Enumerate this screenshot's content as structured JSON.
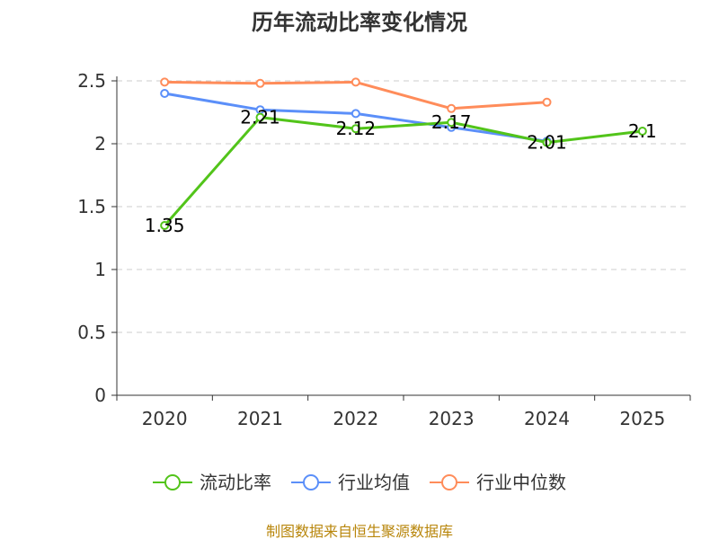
{
  "chart_data": {
    "type": "line",
    "title": "历年流动比率变化情况",
    "categories": [
      "2020",
      "2021",
      "2022",
      "2023",
      "2024",
      "2025"
    ],
    "ylim": [
      0,
      2.5
    ],
    "yticks": [
      0,
      0.5,
      1,
      1.5,
      2,
      2.5
    ],
    "ytick_labels": [
      "0",
      "0.5",
      "1",
      "1.5",
      "2",
      "2.5"
    ],
    "grid": true,
    "legend_position": "bottom",
    "series": [
      {
        "name": "流动比率",
        "color": "#52c41a",
        "values": [
          1.35,
          2.21,
          2.12,
          2.17,
          2.01,
          2.1
        ],
        "labels": [
          "1.35",
          "2.21",
          "2.12",
          "2.17",
          "2.01",
          "2.1"
        ]
      },
      {
        "name": "行业均值",
        "color": "#5b8ff9",
        "values": [
          2.4,
          2.27,
          2.24,
          2.13,
          2.02,
          null
        ]
      },
      {
        "name": "行业中位数",
        "color": "#ff8c5a",
        "values": [
          2.49,
          2.48,
          2.49,
          2.28,
          2.33,
          null
        ]
      }
    ],
    "source": "制图数据来自恒生聚源数据库"
  }
}
